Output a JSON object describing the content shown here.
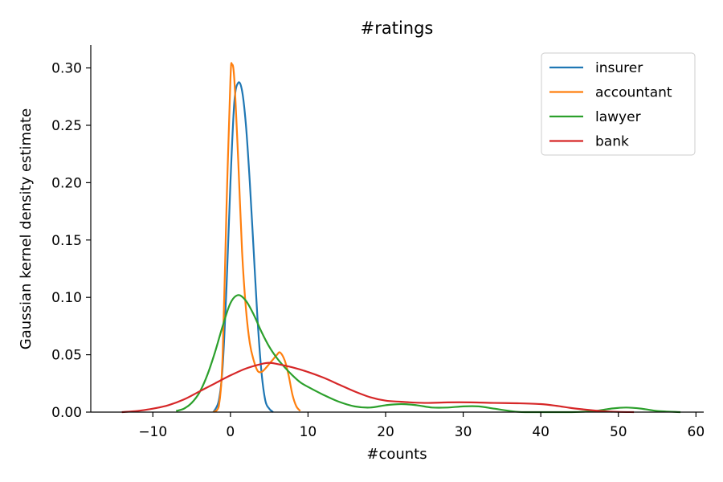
{
  "chart_data": {
    "type": "line",
    "title": "#ratings",
    "xlabel": "#counts",
    "ylabel": "Gaussian kernel density estimate",
    "xlim": [
      -18,
      61
    ],
    "ylim": [
      0,
      0.32
    ],
    "xticks": [
      -10,
      0,
      10,
      20,
      30,
      40,
      50,
      60
    ],
    "yticks": [
      0.0,
      0.05,
      0.1,
      0.15,
      0.2,
      0.25,
      0.3
    ],
    "xtick_labels": [
      "−10",
      "0",
      "10",
      "20",
      "30",
      "40",
      "50",
      "60"
    ],
    "ytick_labels": [
      "0.00",
      "0.05",
      "0.10",
      "0.15",
      "0.20",
      "0.25",
      "0.30"
    ],
    "grid": false,
    "legend_position": "top-right",
    "series": [
      {
        "name": "insurer",
        "color": "#1f77b4",
        "points": [
          [
            -2.2,
            0
          ],
          [
            -1.5,
            0.01
          ],
          [
            -1,
            0.04
          ],
          [
            -0.5,
            0.11
          ],
          [
            0,
            0.2
          ],
          [
            0.5,
            0.27
          ],
          [
            1,
            0.287
          ],
          [
            1.5,
            0.28
          ],
          [
            2,
            0.25
          ],
          [
            2.5,
            0.2
          ],
          [
            3,
            0.14
          ],
          [
            3.5,
            0.08
          ],
          [
            4,
            0.035
          ],
          [
            4.5,
            0.01
          ],
          [
            5,
            0.003
          ],
          [
            5.5,
            0.0
          ]
        ]
      },
      {
        "name": "accountant",
        "color": "#ff7f0e",
        "points": [
          [
            -2.2,
            0
          ],
          [
            -1.5,
            0.005
          ],
          [
            -1,
            0.05
          ],
          [
            -0.5,
            0.18
          ],
          [
            0,
            0.29
          ],
          [
            0.2,
            0.303
          ],
          [
            0.5,
            0.29
          ],
          [
            1,
            0.22
          ],
          [
            1.5,
            0.14
          ],
          [
            2,
            0.09
          ],
          [
            2.5,
            0.06
          ],
          [
            3,
            0.045
          ],
          [
            3.5,
            0.036
          ],
          [
            4,
            0.035
          ],
          [
            4.5,
            0.038
          ],
          [
            5,
            0.042
          ],
          [
            5.5,
            0.046
          ],
          [
            6,
            0.05
          ],
          [
            6.4,
            0.052
          ],
          [
            7,
            0.045
          ],
          [
            7.5,
            0.032
          ],
          [
            8,
            0.015
          ],
          [
            8.5,
            0.005
          ],
          [
            9,
            0.001
          ]
        ]
      },
      {
        "name": "lawyer",
        "color": "#2ca02c",
        "points": [
          [
            -7,
            0.001
          ],
          [
            -6,
            0.003
          ],
          [
            -5,
            0.008
          ],
          [
            -4,
            0.017
          ],
          [
            -3,
            0.032
          ],
          [
            -2,
            0.052
          ],
          [
            -1,
            0.075
          ],
          [
            0,
            0.095
          ],
          [
            1,
            0.102
          ],
          [
            2,
            0.097
          ],
          [
            3,
            0.085
          ],
          [
            4,
            0.07
          ],
          [
            5,
            0.057
          ],
          [
            6,
            0.047
          ],
          [
            7,
            0.039
          ],
          [
            8,
            0.032
          ],
          [
            9,
            0.026
          ],
          [
            10,
            0.022
          ],
          [
            12,
            0.015
          ],
          [
            14,
            0.009
          ],
          [
            16,
            0.005
          ],
          [
            18,
            0.004
          ],
          [
            20,
            0.006
          ],
          [
            22,
            0.007
          ],
          [
            24,
            0.006
          ],
          [
            26,
            0.004
          ],
          [
            28,
            0.004
          ],
          [
            30,
            0.005
          ],
          [
            32,
            0.005
          ],
          [
            34,
            0.003
          ],
          [
            36,
            0.001
          ],
          [
            38,
            0.0
          ],
          [
            44,
            0.0
          ],
          [
            47,
            0.001
          ],
          [
            49,
            0.003
          ],
          [
            51,
            0.004
          ],
          [
            53,
            0.003
          ],
          [
            55,
            0.001
          ],
          [
            58,
            0.0
          ]
        ]
      },
      {
        "name": "bank",
        "color": "#d62728",
        "points": [
          [
            -14,
            0.0
          ],
          [
            -12,
            0.001
          ],
          [
            -10,
            0.003
          ],
          [
            -8,
            0.006
          ],
          [
            -6,
            0.011
          ],
          [
            -4,
            0.018
          ],
          [
            -2,
            0.025
          ],
          [
            0,
            0.032
          ],
          [
            2,
            0.038
          ],
          [
            4,
            0.042
          ],
          [
            5,
            0.043
          ],
          [
            6,
            0.042
          ],
          [
            8,
            0.039
          ],
          [
            10,
            0.035
          ],
          [
            12,
            0.03
          ],
          [
            14,
            0.024
          ],
          [
            16,
            0.018
          ],
          [
            18,
            0.013
          ],
          [
            20,
            0.01
          ],
          [
            22,
            0.009
          ],
          [
            25,
            0.008
          ],
          [
            28,
            0.0085
          ],
          [
            31,
            0.0085
          ],
          [
            34,
            0.008
          ],
          [
            37,
            0.0077
          ],
          [
            40,
            0.007
          ],
          [
            42,
            0.0055
          ],
          [
            44,
            0.0035
          ],
          [
            46,
            0.002
          ],
          [
            48,
            0.0008
          ],
          [
            50,
            0.0002
          ],
          [
            52,
            0.0
          ]
        ]
      }
    ]
  }
}
